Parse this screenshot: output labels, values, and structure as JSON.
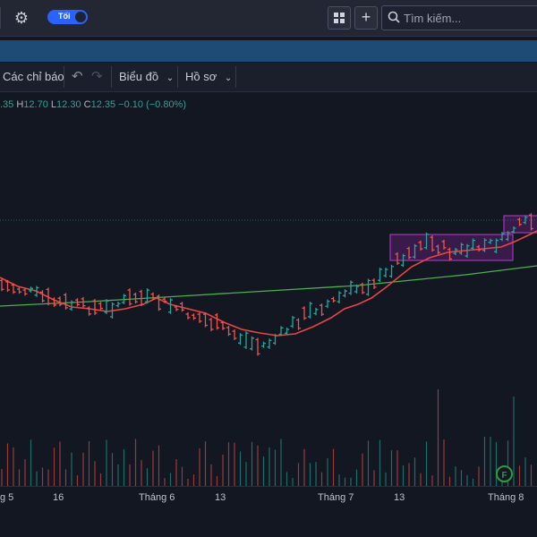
{
  "topbar": {
    "theme_toggle_label": "Tối",
    "search_placeholder": "Tìm kiếm..."
  },
  "toolbar": {
    "indicators_label": "Các chỉ báo",
    "chart_label": "Biểu đồ",
    "profile_label": "Hồ sơ"
  },
  "ohlc": {
    "open_prefix": ".35",
    "high_label": "H",
    "high": "12.70",
    "low_label": "L",
    "low": "12.30",
    "close_label": "C",
    "close": "12.35",
    "change": "−0.10 (−0.80%)"
  },
  "colors": {
    "background": "#131722",
    "up": "#26a69a",
    "down": "#ef5350",
    "ma_short": "#e84545",
    "ma_long": "#4caf50",
    "highlight_box": "#9c27b0"
  },
  "chart_data": {
    "type": "ohlc-bar",
    "x_ticks": [
      "g 5",
      "16",
      "Tháng 6",
      "13",
      "Tháng 7",
      "13",
      "Tháng 8"
    ],
    "indicators": [
      "moving-average-short",
      "moving-average-long",
      "volume"
    ],
    "event_badge": "F"
  }
}
